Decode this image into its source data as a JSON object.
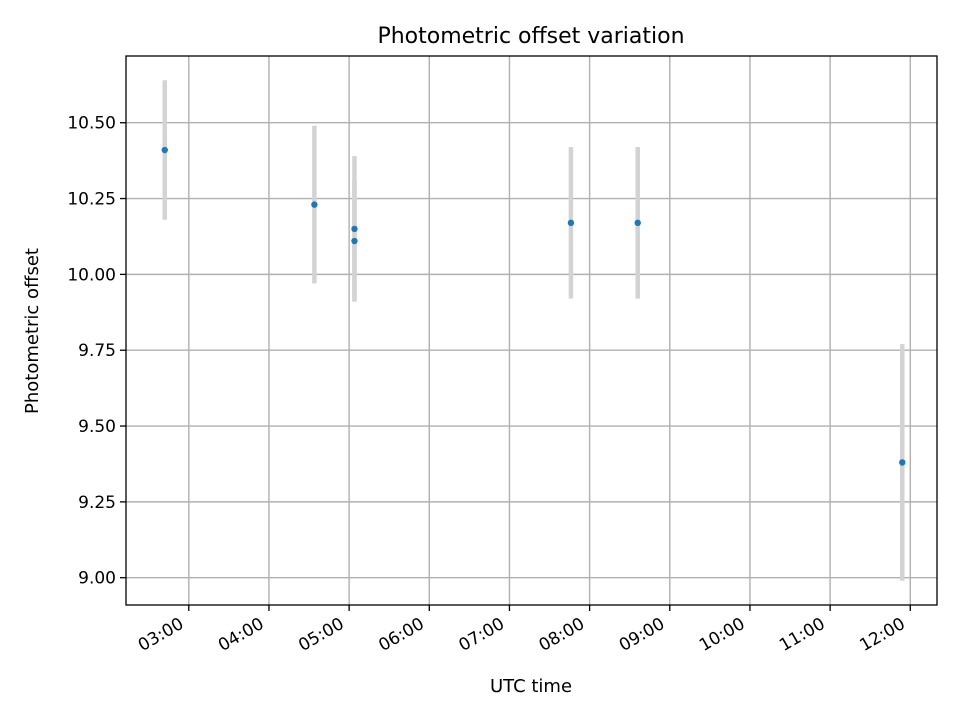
{
  "chart_data": {
    "type": "scatter",
    "title": "Photometric offset variation",
    "xlabel": "UTC time",
    "ylabel": "Photometric offset",
    "x_type": "time",
    "xlim": [
      "02:13",
      "12:20"
    ],
    "ylim": [
      8.91,
      10.72
    ],
    "x_ticks": [
      "03:00",
      "04:00",
      "05:00",
      "06:00",
      "07:00",
      "08:00",
      "09:00",
      "10:00",
      "11:00",
      "12:00"
    ],
    "y_ticks": [
      9.0,
      9.25,
      9.5,
      9.75,
      10.0,
      10.25,
      10.5
    ],
    "y_tick_labels": [
      "9.00",
      "9.25",
      "9.50",
      "9.75",
      "10.00",
      "10.25",
      "10.50"
    ],
    "grid": true,
    "point_color": "#1f77b4",
    "errorbar_color": "#d3d3d3",
    "points": [
      {
        "x": "02:42",
        "y": 10.41,
        "yerr": 0.23
      },
      {
        "x": "04:34",
        "y": 10.23,
        "yerr": 0.26
      },
      {
        "x": "05:04",
        "y": 10.15,
        "yerr": 0.24
      },
      {
        "x": "05:04",
        "y": 10.11,
        "yerr": 0.2
      },
      {
        "x": "07:46",
        "y": 10.17,
        "yerr": 0.25
      },
      {
        "x": "08:36",
        "y": 10.17,
        "yerr": 0.25
      },
      {
        "x": "11:54",
        "y": 9.38,
        "yerr": 0.39
      }
    ]
  }
}
